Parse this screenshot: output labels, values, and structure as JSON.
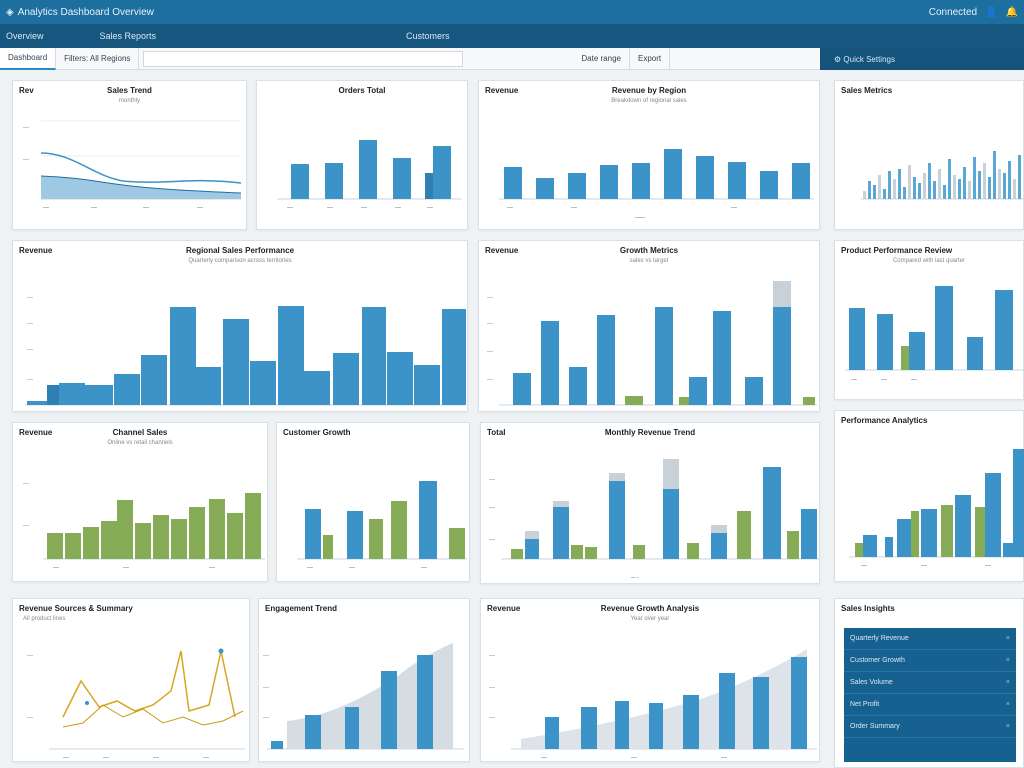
{
  "titlebar": {
    "app_title": "Analytics Dashboard Overview",
    "right_label": "Connected",
    "icons": [
      "logo-icon",
      "user-icon",
      "bell-icon"
    ]
  },
  "menubar": {
    "items": [
      "Overview",
      "Sales Reports",
      "Customers"
    ]
  },
  "toolbar": {
    "tabs": [
      "Dashboard",
      "Filters: All Regions",
      "Date range",
      "Export"
    ],
    "right_label": "Quick Settings"
  },
  "panels": {
    "p1": {
      "label": "Rev",
      "title": "Sales Trend",
      "subtitle": "monthly"
    },
    "p2": {
      "title": "Orders Total"
    },
    "p3": {
      "label": "Revenue",
      "title": "Revenue by Region",
      "subtitle": "Breakdown of regional sales"
    },
    "p4": {
      "title": "Sales Metrics"
    },
    "p5": {
      "label": "Revenue",
      "title": "Regional Sales Performance",
      "subtitle": "Quarterly comparison across territories"
    },
    "p6": {
      "label": "Revenue",
      "title": "Growth Metrics",
      "subtitle": "sales vs target"
    },
    "p7": {
      "title": "Product Performance Review",
      "subtitle": "Compared with last quarter"
    },
    "p8": {
      "label": "Revenue",
      "title": "Channel Sales",
      "subtitle": "Online vs retail channels"
    },
    "p9": {
      "title": "Customer Growth"
    },
    "p10": {
      "label": "Total",
      "title": "Monthly Revenue Trend"
    },
    "p11": {
      "title": "Performance Analytics"
    },
    "p12": {
      "title": "Revenue Sources & Summary",
      "subtitle": "All product lines"
    },
    "p13": {
      "title": "Engagement Trend"
    },
    "p14": {
      "label": "Revenue",
      "title": "Revenue Growth Analysis",
      "subtitle": "Year over year"
    },
    "p15": {
      "title": "Sales Insights"
    }
  },
  "legend_list": {
    "items": [
      "Quarterly Revenue",
      "Customer Growth",
      "Sales Volume",
      "Net Profit",
      "Order Summary"
    ]
  },
  "colors": {
    "blue": "#3b93c8",
    "green": "#86ac57",
    "grey": "#c9d1d8",
    "gold": "#d9a520",
    "header": "#1d6fa0"
  }
}
